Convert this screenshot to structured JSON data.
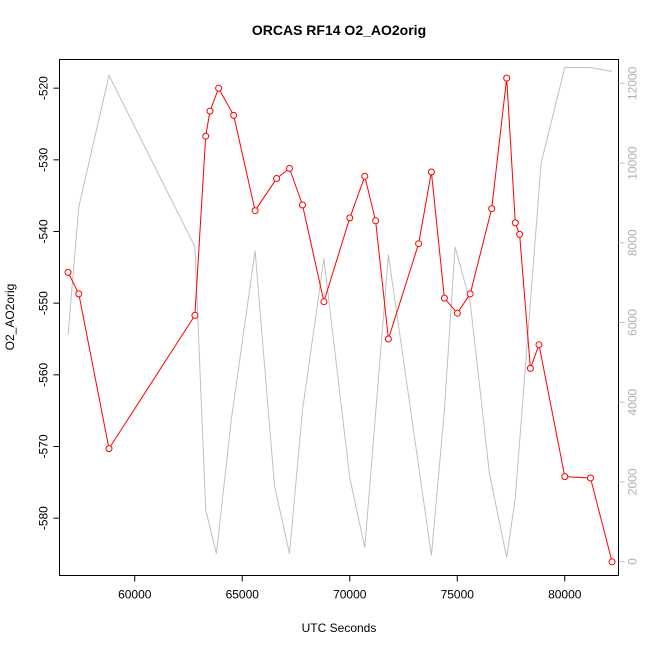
{
  "chart_data": {
    "type": "line",
    "title": "ORCAS RF14 O2_AO2orig",
    "xlabel": "UTC Seconds",
    "ylabel": "O2_AO2orig",
    "xlim": [
      56500,
      82500
    ],
    "ylim": [
      -588,
      -516
    ],
    "y2lim": [
      -350,
      12600
    ],
    "x_ticks": [
      60000,
      65000,
      70000,
      75000,
      80000
    ],
    "x_tick_labels": [
      "60000",
      "65000",
      "70000",
      "75000",
      "80000"
    ],
    "y_ticks": [
      -580,
      -570,
      -560,
      -550,
      -540,
      -530,
      -520
    ],
    "y_tick_labels": [
      "-580",
      "-570",
      "-560",
      "-550",
      "-540",
      "-530",
      "-520"
    ],
    "y2_ticks": [
      0,
      2000,
      4000,
      6000,
      8000,
      10000,
      12000
    ],
    "y2_tick_labels": [
      "0",
      "2000",
      "4000",
      "6000",
      "8000",
      "10000",
      "12000"
    ],
    "colors": {
      "primary": "#ff0000",
      "secondary": "#c0c0c0"
    },
    "series": [
      {
        "axis": "left",
        "style": "line-points",
        "x": [
          56900,
          57400,
          58800,
          62800,
          63300,
          63500,
          63900,
          64600,
          65600,
          66600,
          67200,
          67800,
          68800,
          70000,
          70700,
          71200,
          71800,
          73200,
          73800,
          74400,
          75000,
          75600,
          76600,
          77300,
          77700,
          77900,
          78400,
          78800,
          80000,
          81200,
          82200
        ],
        "y": [
          -545.7,
          -548.7,
          -570.3,
          -551.7,
          -526.7,
          -523.2,
          -520.0,
          -523.8,
          -537.1,
          -532.6,
          -531.2,
          -536.3,
          -549.8,
          -538.1,
          -532.3,
          -538.5,
          -555.0,
          -541.7,
          -531.7,
          -549.3,
          -551.4,
          -548.7,
          -536.8,
          -518.6,
          -538.8,
          -540.4,
          -559.1,
          -555.8,
          -574.2,
          -574.4,
          -586.1
        ]
      },
      {
        "axis": "right",
        "style": "line",
        "x": [
          56900,
          57400,
          58800,
          62800,
          63300,
          63800,
          64500,
          65600,
          66500,
          67200,
          67800,
          68800,
          70000,
          70700,
          71800,
          73800,
          74400,
          74900,
          75600,
          76500,
          77300,
          77700,
          78900,
          80000,
          81200,
          82200
        ],
        "y": [
          5700,
          8900,
          12200,
          7900,
          1300,
          200,
          3600,
          7800,
          1900,
          200,
          3800,
          7600,
          2100,
          350,
          7700,
          150,
          3800,
          7900,
          6500,
          2200,
          100,
          1600,
          10000,
          12400,
          12400,
          12300
        ]
      }
    ]
  }
}
